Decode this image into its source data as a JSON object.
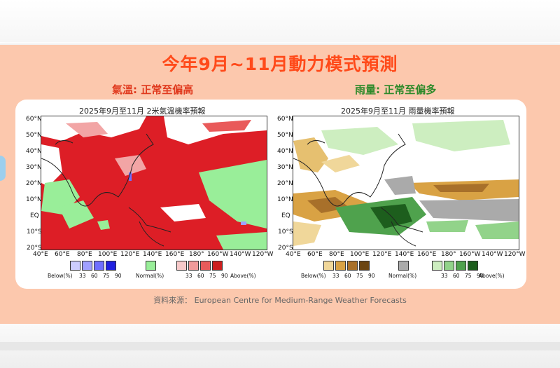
{
  "header": {
    "title": "今年9月~11月動力模式預測",
    "temp_summary": "氣溫: 正常至偏高",
    "rain_summary": "雨量: 正常至偏多"
  },
  "maps": [
    {
      "id": "temperature",
      "title": "2025年9月至11月 2米氣溫機率預報",
      "lat_labels": [
        "60°N",
        "50°N",
        "40°N",
        "30°N",
        "20°N",
        "10°N",
        "EQ",
        "10°S",
        "20°S"
      ],
      "lon_labels": [
        "40°E",
        "60°E",
        "80°E",
        "100°E",
        "120°E",
        "140°E",
        "160°E",
        "180°",
        "160°W",
        "140°W",
        "120°W"
      ],
      "below_label": "Below(%)",
      "normal_label": "Normal(%)",
      "above_label": "Above(%)",
      "below_ticks": [
        "33",
        "60",
        "75",
        "90"
      ],
      "above_ticks": [
        "33",
        "60",
        "75",
        "90"
      ],
      "below_colors": [
        "#ccccff",
        "#a0a0ff",
        "#6f6fff",
        "#2020e0"
      ],
      "normal_color": "#99ee99",
      "above_colors": [
        "#f7c9c9",
        "#f09a9a",
        "#e85a5a",
        "#cc1f1f"
      ]
    },
    {
      "id": "precipitation",
      "title": "2025年9月至11月 雨量機率預報",
      "lat_labels": [
        "60°N",
        "50°N",
        "40°N",
        "30°N",
        "20°N",
        "10°N",
        "EQ",
        "10°S",
        "20°S"
      ],
      "lon_labels": [
        "40°E",
        "60°E",
        "80°E",
        "100°E",
        "120°E",
        "140°E",
        "160°E",
        "180°",
        "160°W",
        "140°W",
        "120°W"
      ],
      "below_label": "Below(%)",
      "normal_label": "Normal(%)",
      "above_label": "Above(%)",
      "below_ticks": [
        "33",
        "60",
        "75",
        "90"
      ],
      "above_ticks": [
        "33",
        "60",
        "75",
        "90"
      ],
      "below_colors": [
        "#f0d79a",
        "#d9a244",
        "#a8702a",
        "#6b4512"
      ],
      "normal_color": "#aaaaaa",
      "above_colors": [
        "#cdeec0",
        "#92d38a",
        "#4fa24d",
        "#1d5e1d"
      ]
    }
  ],
  "source": "資料來源： European Centre for Medium-Range Weather Forecasts"
}
